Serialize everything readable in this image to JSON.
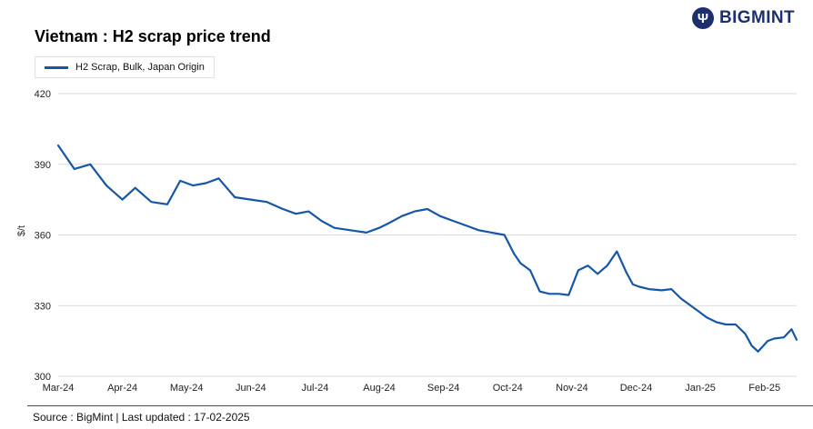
{
  "header": {
    "title": "Vietnam : H2 scrap price trend",
    "logo_text": "BIGMINT"
  },
  "legend": {
    "label": "H2 Scrap, Bulk, Japan Origin"
  },
  "footer": {
    "source_line": "Source : BigMint | Last updated : 17-02-2025"
  },
  "chart_data": {
    "type": "line",
    "title": "Vietnam : H2 scrap price trend",
    "series_name": "H2 Scrap, Bulk, Japan Origin",
    "ylabel": "$/t",
    "ylim": [
      300,
      420
    ],
    "y_ticks": [
      300,
      330,
      360,
      390,
      420
    ],
    "x_labels": [
      "Mar-24",
      "Apr-24",
      "May-24",
      "Jun-24",
      "Jul-24",
      "Aug-24",
      "Sep-24",
      "Oct-24",
      "Nov-24",
      "Dec-24",
      "Jan-25",
      "Feb-25"
    ],
    "x_domain": [
      0,
      11.5
    ],
    "grid": true,
    "legend_position": "top-left",
    "line_color": "#1557a6",
    "grid_color": "#d9d9d9",
    "tick_color": "#222222",
    "points": [
      [
        0,
        398
      ],
      [
        0.25,
        388
      ],
      [
        0.5,
        390
      ],
      [
        0.75,
        381
      ],
      [
        1,
        375
      ],
      [
        1.2,
        380
      ],
      [
        1.45,
        374
      ],
      [
        1.7,
        373
      ],
      [
        1.9,
        383
      ],
      [
        2.1,
        381
      ],
      [
        2.3,
        382
      ],
      [
        2.5,
        384
      ],
      [
        2.75,
        376
      ],
      [
        3,
        375
      ],
      [
        3.25,
        374
      ],
      [
        3.5,
        371
      ],
      [
        3.7,
        369
      ],
      [
        3.9,
        370
      ],
      [
        4.1,
        366
      ],
      [
        4.3,
        363
      ],
      [
        4.55,
        362
      ],
      [
        4.8,
        361
      ],
      [
        5,
        363
      ],
      [
        5.15,
        365
      ],
      [
        5.35,
        368
      ],
      [
        5.55,
        370
      ],
      [
        5.75,
        371
      ],
      [
        5.95,
        368
      ],
      [
        6.15,
        366
      ],
      [
        6.35,
        364
      ],
      [
        6.55,
        362
      ],
      [
        6.75,
        361
      ],
      [
        6.95,
        360
      ],
      [
        7.1,
        352
      ],
      [
        7.2,
        348
      ],
      [
        7.35,
        345
      ],
      [
        7.5,
        336
      ],
      [
        7.65,
        335
      ],
      [
        7.8,
        335
      ],
      [
        7.95,
        334.5
      ],
      [
        8.1,
        345
      ],
      [
        8.25,
        347
      ],
      [
        8.4,
        343.5
      ],
      [
        8.55,
        347
      ],
      [
        8.7,
        353
      ],
      [
        8.85,
        344
      ],
      [
        8.95,
        339
      ],
      [
        9.05,
        338
      ],
      [
        9.2,
        337
      ],
      [
        9.4,
        336.5
      ],
      [
        9.55,
        337
      ],
      [
        9.7,
        333
      ],
      [
        9.85,
        330
      ],
      [
        9.95,
        328
      ],
      [
        10.1,
        325
      ],
      [
        10.25,
        323
      ],
      [
        10.4,
        322
      ],
      [
        10.55,
        322
      ],
      [
        10.7,
        318
      ],
      [
        10.8,
        313
      ],
      [
        10.9,
        310.5
      ],
      [
        11.05,
        315
      ],
      [
        11.15,
        316
      ],
      [
        11.3,
        316.5
      ],
      [
        11.42,
        320
      ],
      [
        11.5,
        315.5
      ]
    ]
  }
}
